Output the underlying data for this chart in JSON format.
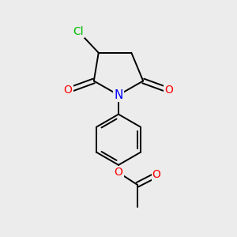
{
  "background_color": "#ececec",
  "atom_colors": {
    "C": "#000000",
    "N": "#0000ff",
    "O": "#ff0000",
    "Cl": "#00bb00"
  },
  "bond_color": "#000000",
  "bond_width": 1.4,
  "font_size": 10,
  "figsize": [
    3.0,
    3.0
  ],
  "dpi": 100
}
